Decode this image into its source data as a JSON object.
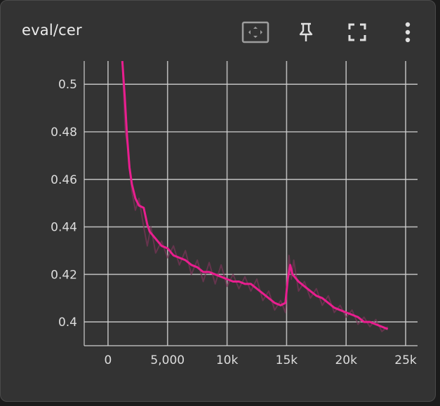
{
  "card": {
    "title": "eval/cer",
    "toolbar": [
      {
        "name": "fit-domain-icon"
      },
      {
        "name": "pin-icon"
      },
      {
        "name": "fullscreen-icon"
      },
      {
        "name": "more-vert-icon"
      }
    ]
  },
  "colors": {
    "background": "#333333",
    "line": "#e91e8f",
    "raw_line": "#7a3559",
    "grid": "#cfcfcf",
    "text": "#dddddd"
  },
  "chart_data": {
    "type": "line",
    "title": "eval/cer",
    "xlabel": "",
    "ylabel": "",
    "xlim": [
      -2000,
      26000
    ],
    "ylim": [
      0.39,
      0.5098
    ],
    "x_ticks": [
      0,
      5000,
      10000,
      15000,
      20000,
      25000
    ],
    "x_tick_labels": [
      "0",
      "5,000",
      "10k",
      "15k",
      "20k",
      "25k"
    ],
    "y_ticks": [
      0.4,
      0.42,
      0.44,
      0.46,
      0.48,
      0.5
    ],
    "y_tick_labels": [
      "0.4",
      "0.42",
      "0.44",
      "0.46",
      "0.48",
      "0.5"
    ],
    "grid": true,
    "series": [
      {
        "role": "smoothed",
        "x": [
          1200,
          1400,
          1600,
          1800,
          2000,
          2300,
          2600,
          3000,
          3300,
          3500,
          4000,
          4500,
          5000,
          5500,
          6000,
          6500,
          7000,
          7500,
          8000,
          8500,
          9000,
          9500,
          10000,
          10500,
          11000,
          11500,
          12000,
          12500,
          13000,
          13500,
          14000,
          14500,
          14900,
          15100,
          15300,
          15500,
          16000,
          16500,
          17000,
          17500,
          18000,
          18500,
          19000,
          19500,
          20000,
          20500,
          21000,
          21500,
          22000,
          22500,
          23000,
          23500
        ],
        "y": [
          0.5098,
          0.495,
          0.478,
          0.465,
          0.458,
          0.452,
          0.449,
          0.448,
          0.441,
          0.438,
          0.435,
          0.432,
          0.431,
          0.428,
          0.427,
          0.426,
          0.424,
          0.423,
          0.421,
          0.421,
          0.42,
          0.419,
          0.418,
          0.417,
          0.417,
          0.416,
          0.416,
          0.414,
          0.412,
          0.41,
          0.408,
          0.407,
          0.408,
          0.418,
          0.424,
          0.42,
          0.417,
          0.415,
          0.413,
          0.411,
          0.41,
          0.408,
          0.406,
          0.405,
          0.404,
          0.403,
          0.402,
          0.4,
          0.4,
          0.399,
          0.398,
          0.397
        ]
      },
      {
        "role": "raw",
        "x": [
          1200,
          1450,
          1700,
          2000,
          2300,
          2600,
          3000,
          3300,
          3600,
          4000,
          4500,
          5000,
          5500,
          6000,
          6500,
          7000,
          7500,
          8000,
          8500,
          9000,
          9500,
          10000,
          10500,
          11000,
          11500,
          12000,
          12500,
          13000,
          13500,
          14000,
          14500,
          14900,
          15200,
          15400,
          15600,
          16000,
          16500,
          17000,
          17500,
          18000,
          18500,
          19000,
          19500,
          20000,
          20500,
          21000,
          21500,
          22000,
          22500,
          23000,
          23500
        ],
        "y": [
          0.5098,
          0.48,
          0.472,
          0.455,
          0.447,
          0.452,
          0.44,
          0.432,
          0.44,
          0.429,
          0.434,
          0.427,
          0.432,
          0.424,
          0.43,
          0.42,
          0.426,
          0.417,
          0.425,
          0.416,
          0.424,
          0.415,
          0.42,
          0.414,
          0.419,
          0.413,
          0.418,
          0.409,
          0.413,
          0.405,
          0.409,
          0.404,
          0.428,
          0.418,
          0.426,
          0.413,
          0.417,
          0.41,
          0.414,
          0.407,
          0.411,
          0.404,
          0.407,
          0.402,
          0.405,
          0.399,
          0.402,
          0.398,
          0.401,
          0.396,
          0.398
        ]
      }
    ]
  }
}
